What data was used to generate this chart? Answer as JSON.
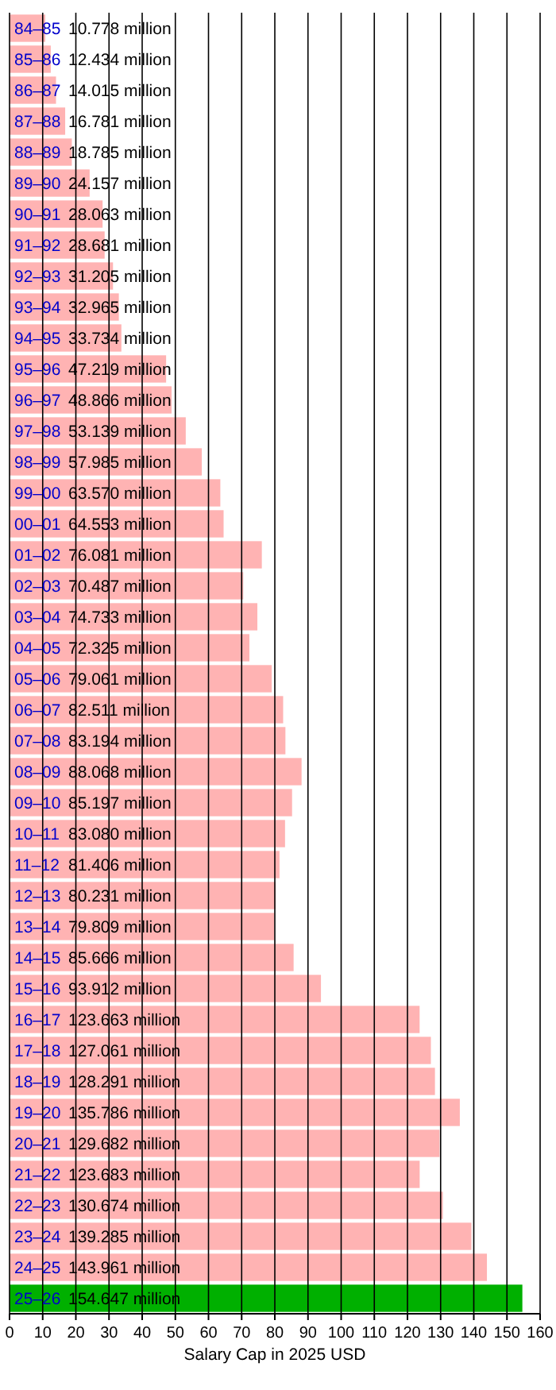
{
  "chart_data": {
    "type": "bar",
    "orientation": "horizontal",
    "xlabel": "Salary Cap in 2025 USD",
    "categories": [
      "84–85",
      "85–86",
      "86–87",
      "87–88",
      "88–89",
      "89–90",
      "90–91",
      "91–92",
      "92–93",
      "93–94",
      "94–95",
      "95–96",
      "96–97",
      "97–98",
      "98–99",
      "99–00",
      "00–01",
      "01–02",
      "02–03",
      "03–04",
      "04–05",
      "05–06",
      "06–07",
      "07–08",
      "08–09",
      "09–10",
      "10–11",
      "11–12",
      "12–13",
      "13–14",
      "14–15",
      "15–16",
      "16–17",
      "17–18",
      "18–19",
      "19–20",
      "20–21",
      "21–22",
      "22–23",
      "23–24",
      "24–25",
      "25–26"
    ],
    "values": [
      10.778,
      12.434,
      14.015,
      16.781,
      18.785,
      24.157,
      28.063,
      28.681,
      31.205,
      32.965,
      33.734,
      47.219,
      48.866,
      53.139,
      57.985,
      63.57,
      64.553,
      76.081,
      70.487,
      74.733,
      72.325,
      79.061,
      82.511,
      83.194,
      88.068,
      85.197,
      83.08,
      81.406,
      80.231,
      79.809,
      85.666,
      93.912,
      123.663,
      127.061,
      128.291,
      135.786,
      129.682,
      123.683,
      130.674,
      139.285,
      143.961,
      154.647
    ],
    "value_labels": [
      "10.778 million",
      "12.434 million",
      "14.015 million",
      "16.781 million",
      "18.785 million",
      "24.157 million",
      "28.063 million",
      "28.681 million",
      "31.205 million",
      "32.965 million",
      "33.734 million",
      "47.219 million",
      "48.866 million",
      "53.139 million",
      "57.985 million",
      "63.570 million",
      "64.553 million",
      "76.081 million",
      "70.487 million",
      "74.733 million",
      "72.325 million",
      "79.061 million",
      "82.511 million",
      "83.194 million",
      "88.068 million",
      "85.197 million",
      "83.080 million",
      "81.406 million",
      "80.231 million",
      "79.809 million",
      "85.666 million",
      "93.912 million",
      "123.663 million",
      "127.061 million",
      "128.291 million",
      "135.786 million",
      "129.682 million",
      "123.683 million",
      "130.674 million",
      "139.285 million",
      "143.961 million",
      "154.647 million"
    ],
    "colors": [
      "#ffb3b3",
      "#ffb3b3",
      "#ffb3b3",
      "#ffb3b3",
      "#ffb3b3",
      "#ffb3b3",
      "#ffb3b3",
      "#ffb3b3",
      "#ffb3b3",
      "#ffb3b3",
      "#ffb3b3",
      "#ffb3b3",
      "#ffb3b3",
      "#ffb3b3",
      "#ffb3b3",
      "#ffb3b3",
      "#ffb3b3",
      "#ffb3b3",
      "#ffb3b3",
      "#ffb3b3",
      "#ffb3b3",
      "#ffb3b3",
      "#ffb3b3",
      "#ffb3b3",
      "#ffb3b3",
      "#ffb3b3",
      "#ffb3b3",
      "#ffb3b3",
      "#ffb3b3",
      "#ffb3b3",
      "#ffb3b3",
      "#ffb3b3",
      "#ffb3b3",
      "#ffb3b3",
      "#ffb3b3",
      "#ffb3b3",
      "#ffb3b3",
      "#ffb3b3",
      "#ffb3b3",
      "#ffb3b3",
      "#ffb3b3",
      "#00b000"
    ],
    "xlim": [
      0,
      160
    ],
    "xticks": [
      0,
      10,
      20,
      30,
      40,
      50,
      60,
      70,
      80,
      90,
      100,
      110,
      120,
      130,
      140,
      150,
      160
    ],
    "grid": "x"
  }
}
